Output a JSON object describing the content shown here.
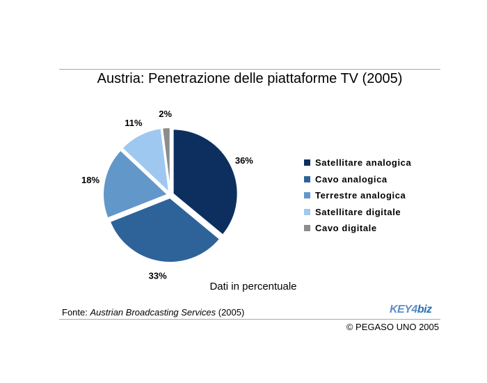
{
  "chart_data": {
    "type": "pie",
    "title": "Austria: Penetrazione delle piattaforme TV (2005)",
    "subtitle": "Dati in percentuale",
    "categories": [
      "Satellitare analogica",
      "Cavo analogica",
      "Terrestre analogica",
      "Satellitare digitale",
      "Cavo digitale"
    ],
    "values": [
      36,
      33,
      18,
      11,
      2
    ],
    "value_labels": [
      "36%",
      "33%",
      "18%",
      "11%",
      "2%"
    ],
    "colors": [
      "#0d2f5f",
      "#2e6399",
      "#6297c9",
      "#9ec8f0",
      "#8c8c8c"
    ],
    "exploded": true,
    "legend_position": "right"
  },
  "footer": {
    "source_prefix": "Fonte: ",
    "source_name": "Austrian Broadcasting Services",
    "source_suffix": " (2005)",
    "copyright": "© PEGASO UNO 2005",
    "logo_part1": "KEY",
    "logo_part2": "4",
    "logo_part3": "biz"
  }
}
